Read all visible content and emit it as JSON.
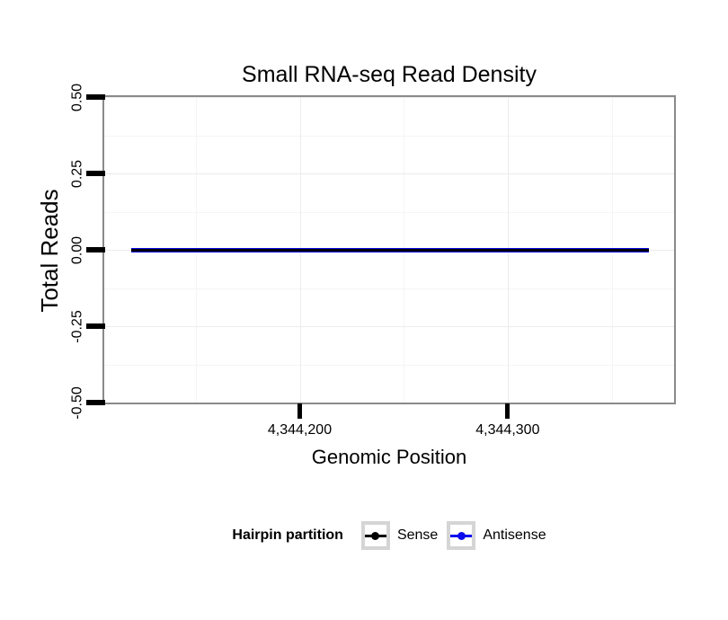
{
  "page": {
    "background": "#ffffff"
  },
  "style": {
    "panel_border_color": "#8a8a8a",
    "tick_color": "#000000",
    "grid_major_color": "#ececec",
    "grid_minor_color": "#f5f5f5",
    "legend_key_border_color": "#d5d5d5"
  },
  "chart_data": {
    "type": "line",
    "title": "Small RNA-seq Read Density",
    "xlabel": "Genomic Position",
    "ylabel": "Total Reads",
    "xlim": [
      4344106,
      4344380
    ],
    "ylim": [
      -0.5,
      0.5
    ],
    "grid": true,
    "x_ticks": [
      {
        "value": 4344200,
        "label": "4,344,200"
      },
      {
        "value": 4344300,
        "label": "4,344,300"
      }
    ],
    "y_ticks": [
      {
        "value": 0.5,
        "label": "0.50"
      },
      {
        "value": 0.25,
        "label": "0.25"
      },
      {
        "value": 0.0,
        "label": "0.00"
      },
      {
        "value": -0.25,
        "label": "-0.25"
      },
      {
        "value": -0.5,
        "label": "-0.50"
      }
    ],
    "x_minor_gridlines": [
      4344150,
      4344250,
      4344350
    ],
    "y_minor_gridlines": [
      0.375,
      0.125,
      -0.125,
      -0.375
    ],
    "legend": {
      "title": "Hairpin partition",
      "position": "bottom",
      "entries": [
        {
          "label": "Sense",
          "color": "#000000"
        },
        {
          "label": "Antisense",
          "color": "#0b0bee"
        }
      ]
    },
    "series": [
      {
        "name": "Antisense",
        "color": "#0b0bee",
        "line_width": 5,
        "x": [
          4344119,
          4344368
        ],
        "y": [
          0,
          0
        ]
      },
      {
        "name": "Sense",
        "color": "#000000",
        "line_width": 3,
        "x": [
          4344119,
          4344368
        ],
        "y": [
          0,
          0
        ]
      }
    ]
  }
}
